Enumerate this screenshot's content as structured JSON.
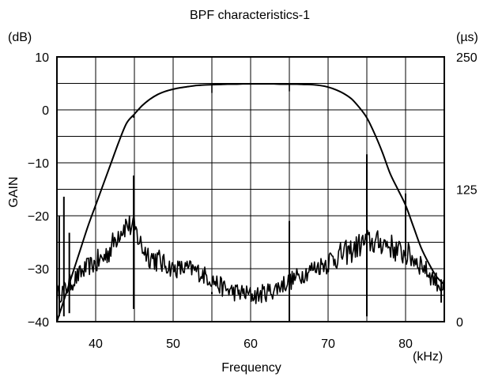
{
  "chart_data": {
    "type": "line",
    "title": "BPF characteristics-1",
    "xlabel": "Frequency",
    "x_unit": "(kHz)",
    "ylabel": "GAIN",
    "y_unit": "(dB)",
    "y2_unit": "(µs)",
    "xlim": [
      35,
      85
    ],
    "ylim": [
      -40,
      10
    ],
    "y2lim": [
      0,
      250
    ],
    "grid": true,
    "x_ticks": [
      {
        "value": 40,
        "label": "40"
      },
      {
        "value": 50,
        "label": "50"
      },
      {
        "value": 60,
        "label": "60"
      },
      {
        "value": 70,
        "label": "70"
      },
      {
        "value": 80,
        "label": "80"
      }
    ],
    "y_ticks": [
      {
        "value": 10,
        "label": "10"
      },
      {
        "value": 0,
        "label": "0"
      },
      {
        "value": -10,
        "label": "−10"
      },
      {
        "value": -20,
        "label": "−20"
      },
      {
        "value": -30,
        "label": "−30"
      },
      {
        "value": -40,
        "label": "−40"
      }
    ],
    "y2_ticks": [
      {
        "value": 250,
        "label": "250"
      },
      {
        "value": 125,
        "label": "125"
      },
      {
        "value": 0,
        "label": "0"
      }
    ],
    "gain_curve": {
      "axis": "left",
      "x": [
        35,
        36,
        37,
        38,
        39,
        40,
        41,
        42,
        43,
        44,
        45,
        46,
        47,
        48,
        49,
        50,
        51,
        52,
        53,
        54,
        55,
        56,
        57,
        58,
        59,
        60,
        61,
        62,
        63,
        64,
        65,
        66,
        67,
        68,
        69,
        70,
        71,
        72,
        73,
        74,
        75,
        76,
        77,
        78,
        79,
        80,
        81,
        82,
        83,
        84,
        85
      ],
      "y": [
        -40,
        -35.5,
        -31,
        -26.5,
        -22,
        -18,
        -14,
        -10,
        -6,
        -2.5,
        -0.8,
        0.8,
        2,
        2.9,
        3.5,
        3.9,
        4.2,
        4.4,
        4.6,
        4.7,
        4.75,
        4.8,
        4.85,
        4.85,
        4.9,
        4.9,
        4.9,
        4.9,
        4.9,
        4.85,
        4.85,
        4.85,
        4.8,
        4.75,
        4.6,
        4.3,
        3.8,
        3.1,
        2.1,
        0.5,
        -1.5,
        -4.5,
        -8,
        -12,
        -15,
        -18,
        -22,
        -26,
        -29,
        -31.5,
        -33
      ],
      "dips": [
        {
          "x": 44.9,
          "y": -1.5
        },
        {
          "x": 55,
          "y": 3.2
        },
        {
          "x": 65,
          "y": 3.5
        }
      ]
    },
    "group_delay": {
      "axis": "right",
      "x": [
        35,
        36,
        37,
        38,
        39,
        40,
        41,
        42,
        43,
        44,
        45,
        46,
        47,
        48,
        49,
        50,
        51,
        52,
        53,
        54,
        55,
        56,
        57,
        58,
        59,
        60,
        61,
        62,
        63,
        64,
        65,
        66,
        67,
        68,
        69,
        70,
        71,
        72,
        73,
        74,
        75,
        76,
        77,
        78,
        79,
        80,
        81,
        82,
        83,
        84,
        85
      ],
      "y": [
        25,
        30,
        38,
        45,
        52,
        55,
        60,
        70,
        85,
        92,
        88,
        70,
        62,
        58,
        54,
        50,
        50,
        50,
        48,
        44,
        40,
        34,
        30,
        28,
        27,
        25,
        25,
        28,
        30,
        35,
        38,
        42,
        46,
        50,
        53,
        57,
        61,
        64,
        67,
        72,
        76,
        74,
        75,
        72,
        66,
        64,
        60,
        55,
        45,
        38,
        30
      ],
      "spikes": [
        {
          "x": 35.3,
          "top": 100,
          "bottom": 5
        },
        {
          "x": 35.9,
          "top": 118,
          "bottom": 5
        },
        {
          "x": 36.6,
          "top": 84,
          "bottom": 8
        },
        {
          "x": 44.9,
          "top": 138,
          "bottom": 12
        },
        {
          "x": 55,
          "top": 28,
          "bottom": 26
        },
        {
          "x": 65,
          "top": 95,
          "bottom": 0
        },
        {
          "x": 75,
          "top": 158,
          "bottom": 5
        },
        {
          "x": 80,
          "top": 121,
          "bottom": 62
        },
        {
          "x": 84.6,
          "top": 40,
          "bottom": 18
        }
      ]
    }
  }
}
